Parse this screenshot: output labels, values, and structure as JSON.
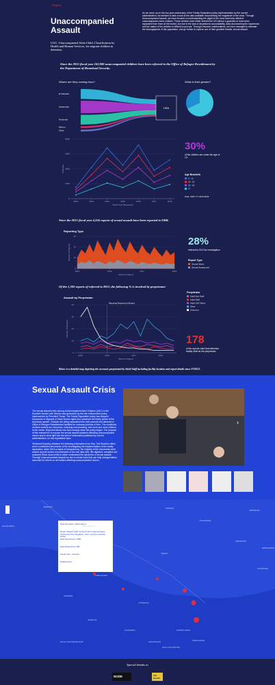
{
  "header": {
    "language": "English",
    "title": "Unaccompanied Assault",
    "subtitle": "UAC: Unaccompanied Alien Child, Classification by Health and Human Services, for migrant children in detention.",
    "intro": "As we come up on the two year anniversary of the Family Separation policy implementation by the current administration, we decided to take a look at the data available documenting the magnitude of the crisis. Through Unaccompanied Assault, we have focused on understanding the plight of the most extremely affected: unaccompanied minor children. These children have either entered the US without a guardian or have been separated from them at the border, but due to the lack of department accountability, data documenting the experience and the status of the children is difficult to procure. Through research collaborations, we have managed to estimate the demographics of this population, and go further to explore one of their greatest threats: sexual assault."
  },
  "referrals": {
    "statement": "Since the 2015 fiscal year 162,000 unaccompanied children have been referred to the Office of Refugee Resettlement by the Department of Homeland Security.",
    "origins": {
      "title": "Where are they coming from?",
      "categories": [
        "El Salvador",
        "Guatemala",
        "Honduras",
        "Mexico",
        "Other"
      ],
      "values": [
        28,
        35,
        27,
        5,
        5
      ],
      "colors": [
        "#35c0e6",
        "#b23bd6",
        "#2fd3b0",
        "#e0306a",
        "#6a78d0"
      ],
      "destination": "USA"
    },
    "gender": {
      "title": "What is their gender?",
      "values": [
        68,
        32
      ],
      "colors": [
        "#3ec6e0",
        "#1f8fd0"
      ]
    },
    "age_chart": {
      "type": "line",
      "x": [
        2012,
        2013,
        2014,
        2015,
        2016,
        2017,
        2018
      ],
      "xlim": [
        2011.7,
        2018.3
      ],
      "xticks": [
        2012,
        2013,
        2014,
        2015,
        2016,
        2017,
        2018
      ],
      "ylim": [
        0,
        8000
      ],
      "yticks": [
        0,
        2000,
        4000,
        6000,
        8000
      ],
      "x_label": "Fiscal Year (Reported)",
      "y_label": "Referrals",
      "legend_title": "Age Brackets",
      "series": [
        {
          "name": "0 - 12",
          "color": "#3b6fe0",
          "values": [
            1500,
            4200,
            6800,
            4500,
            7200,
            3800,
            5200
          ]
        },
        {
          "name": "13 - 14",
          "color": "#e0305a",
          "values": [
            1200,
            3200,
            5400,
            3600,
            5800,
            3000,
            4200
          ]
        },
        {
          "name": "15 - 16",
          "color": "#b23bd6",
          "values": [
            900,
            2400,
            3800,
            2600,
            4200,
            2200,
            3100
          ]
        },
        {
          "name": "17",
          "color": "#35c6e6",
          "values": [
            500,
            1300,
            2100,
            1500,
            2400,
            1300,
            1900
          ]
        }
      ]
    },
    "stat": {
      "value": "30%",
      "text": "of the children are under the age of 13."
    },
    "source": "Data: ORR, FY 2012-2018"
  },
  "reports": {
    "statement": "Since the 2015 fiscal year 4,556 reports of sexual assault have been reported to ORR.",
    "chart": {
      "type": "area",
      "title": "Reporting Type",
      "x": [
        2015,
        2015.125,
        2015.25,
        2015.375,
        2015.5,
        2015.625,
        2015.75,
        2015.875,
        2016,
        2016.125,
        2016.25,
        2016.375,
        2016.5,
        2016.625,
        2016.75,
        2016.875,
        2017,
        2017.125,
        2017.25,
        2017.375,
        2017.5,
        2017.625,
        2017.75,
        2017.875,
        2018
      ],
      "xlim": [
        2015,
        2018
      ],
      "xticks": [
        2015,
        2016,
        2017,
        2018
      ],
      "ylim": [
        0,
        60
      ],
      "yticks": [
        0,
        20,
        40,
        60
      ],
      "x_label": "Month of Report",
      "y_label": "Number of Reports",
      "legend_title": "Report Type",
      "series": [
        {
          "name": "Sexual Abuse",
          "color": "#e8501e",
          "values": [
            20,
            35,
            28,
            45,
            30,
            52,
            38,
            25,
            48,
            33,
            55,
            40,
            30,
            50,
            36,
            28,
            44,
            32,
            26,
            40,
            30,
            22,
            35,
            25,
            30
          ]
        },
        {
          "name": "Sexual Harassment",
          "color": "#8a92a8",
          "values": [
            8,
            12,
            10,
            15,
            9,
            14,
            11,
            8,
            13,
            10,
            16,
            12,
            9,
            14,
            11,
            8,
            12,
            10,
            8,
            11,
            9,
            7,
            10,
            8,
            9
          ]
        }
      ]
    },
    "stat": {
      "value": "28%",
      "text": "referred to DOJ for investigation"
    }
  },
  "perpetrators": {
    "statement": "Of the 1,303 reports of referred to DOJ, the following % is involved by perpetrator:",
    "chart": {
      "type": "line",
      "title": "Assault by Perpetrator",
      "annotation": "Reporting Requirement Begins",
      "x": [
        2015,
        2015.25,
        2015.5,
        2015.75,
        2016,
        2016.25,
        2016.5,
        2016.75,
        2017,
        2017.25,
        2017.5,
        2017.75,
        2018,
        2018.25,
        2018.5
      ],
      "xlim": [
        2014.8,
        2018.6
      ],
      "xticks": [
        2015,
        2016,
        2017,
        2018
      ],
      "ylim": [
        0,
        40
      ],
      "yticks": [
        0,
        10,
        20,
        30,
        40
      ],
      "x_label": "Month of Report",
      "y_label": "Number of Reports",
      "legend_title": "Perpetrator",
      "series": [
        {
          "name": "Adult Non-Staff",
          "color": "#e040a0",
          "values": [
            5,
            6,
            4,
            7,
            5,
            6,
            5,
            8,
            6,
            5,
            7,
            6,
            5,
            6,
            4
          ]
        },
        {
          "name": "Adult Staff",
          "color": "#e03030",
          "values": [
            3,
            4,
            3,
            5,
            4,
            3,
            4,
            6,
            5,
            4,
            3,
            5,
            4,
            3,
            3
          ]
        },
        {
          "name": "Adult UAC Minor",
          "color": "#a040e0",
          "values": [
            8,
            9,
            7,
            10,
            8,
            9,
            8,
            11,
            9,
            10,
            8,
            9,
            7,
            8,
            6
          ]
        },
        {
          "name": "Other",
          "color": "#3aa0e0",
          "values": [
            10,
            12,
            9,
            14,
            12,
            16,
            24,
            20,
            26,
            14,
            28,
            22,
            18,
            12,
            10
          ]
        },
        {
          "name": "Unknown",
          "color": "#ffffff",
          "values": [
            30,
            38,
            22,
            12,
            8,
            6,
            5,
            4,
            4,
            3,
            3,
            2,
            2,
            2,
            2
          ]
        }
      ]
    },
    "stat": {
      "value": "178",
      "text": "of the reports cited that detention facility Staff as the perpetrator"
    },
    "map_intro": "Below is a detailed map depicting the accounts perpetrated by Adult Staff including facility location and report details since FY2015."
  },
  "crisis": {
    "title": "Sexual Assault Crisis",
    "text": "The sexual assault crisis among Unaccompanied Alien Children (UAC) in the Southern Border with Mexico was generated by the rise enforcement policy implemented by President Trump. The Family Separation policy has stripped thousands of migrants of basic human rights and questions the treaty power of the American system. Children are being separated from their parents and detained in Office of Refugee Resettlement facilities for unknown periods of time. The conditions at these centers are inhumane, including overcrowding, and more and more children at the center. Reported abuse has risen sharply since the policy began. The purpose of this research is to expose the sexual assault epidemic affecting unaccompanied minors and to shed light into the lack of information published by current administration, on this regrettable topic.\n\nTerritorial Empathy obtained the following information from Rep. Ted Deutch's office, which contributed documents of the investigating the implementation of the family separation, when Dec's a stack of transparency, the majority of the documents were shared as joint review of problematic of the raw data sets. We digitized, compiled and analyzed these documents to better understand the dynamics of sexual assault. Through Unaccompanied Assault we aim to create tools that can help changemakers advocate for reform on all matters affecting unaccompanied minors."
  },
  "map": {
    "labels": [
      "CALIFORNIA",
      "ARIZONA",
      "NEW MEXICO",
      "TEXAS",
      "KANSAS",
      "OKLAHOMA",
      "MISSOURI",
      "ARKANSAS",
      "LOUISIANA",
      "MISSISSIPPI",
      "SONORA",
      "CHIHUAHUA",
      "COAHUILA",
      "NUEVO LEON",
      "DURANGO",
      "SINALOA",
      "TAMAULIPAS",
      "BAJA CALIFORNIA SUR",
      "ZACATECAS",
      "SAN LUIS POTOSI"
    ],
    "popup": [
      "Date Providers: Staff named",
      "Detail: Alleged Staff touched UAC inappropriately, staff denied the allegation, UAC moved to another facility",
      "Date Reported to ORR:",
      "Date Reported to FBI:",
      "Fiscal Year - Number:",
      "Relationship:"
    ]
  },
  "footer": {
    "thanks": "Special thanks to",
    "sponsors": [
      "NODE",
      "Ted Deutch"
    ]
  }
}
